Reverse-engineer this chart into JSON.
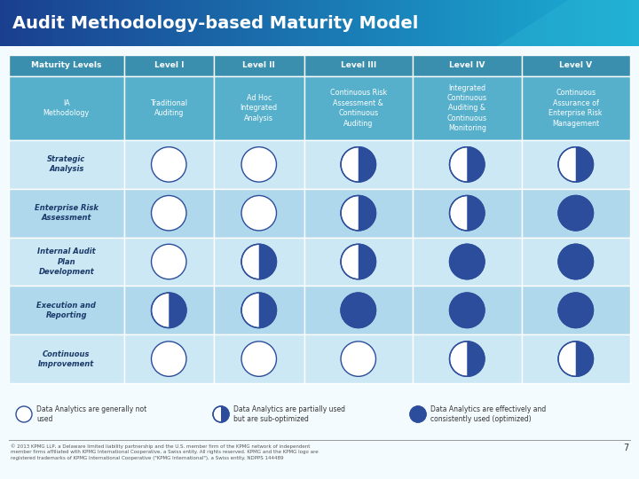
{
  "title": "Audit Methodology-based Maturity Model",
  "col_headers": [
    "Maturity Levels",
    "Level I",
    "Level II",
    "Level III",
    "Level IV",
    "Level V"
  ],
  "col_subheaders": [
    "IA\nMethodology",
    "Traditional\nAuditing",
    "Ad Hoc\nIntegrated\nAnalysis",
    "Continuous Risk\nAssessment &\nContinuous\nAuditing",
    "Integrated\nContinuous\nAuditing &\nContinuous\nMonitoring",
    "Continuous\nAssurance of\nEnterprise Risk\nManagement"
  ],
  "rows": [
    "Strategic\nAnalysis",
    "Enterprise Risk\nAssessment",
    "Internal Audit\nPlan\nDevelopment",
    "Execution and\nReporting",
    "Continuous\nImprovement"
  ],
  "circle_data": [
    [
      0,
      0,
      0.5,
      0.5,
      0.5
    ],
    [
      0,
      0,
      0.5,
      0.5,
      1
    ],
    [
      0,
      0.5,
      0.5,
      1,
      1
    ],
    [
      0.5,
      0.5,
      1,
      1,
      1
    ],
    [
      0,
      0,
      0,
      0.5,
      0.5
    ]
  ],
  "circle_fill_color": "#2b4d9b",
  "circle_border_color": "#2b4d9b",
  "circle_empty_bg": "#ffffff",
  "legend_fills": [
    0,
    0.5,
    1
  ],
  "legend_texts": [
    "Data Analytics are generally not\nused",
    "Data Analytics are partially used\nbut are sub-optimized",
    "Data Analytics are effectively and\nconsistently used (optimized)"
  ],
  "footer_text": "© 2013 KPMG LLP, a Delaware limited liability partnership and the U.S. member firm of the KPMG network of independent\nmember firms affiliated with KPMG International Cooperative, a Swiss entity. All rights reserved. KPMG and the KPMG logo are\nregistered trademarks of KPMG International Cooperative (\"KPMG International\"), a Swiss entity. NDPPS 144489",
  "page_number": "7",
  "title_color_left": "#1a3f8f",
  "title_color_right": "#1ab0d5",
  "header_row_color": "#3a8faf",
  "subheader_row_color": "#56b0cc",
  "row_colors": [
    "#cce8f4",
    "#b0d8ec"
  ],
  "table_border_color": "#ffffff",
  "header_text_color": "#ffffff",
  "row_label_color": "#1a3a6a",
  "bg_color": "#f4fbfe"
}
